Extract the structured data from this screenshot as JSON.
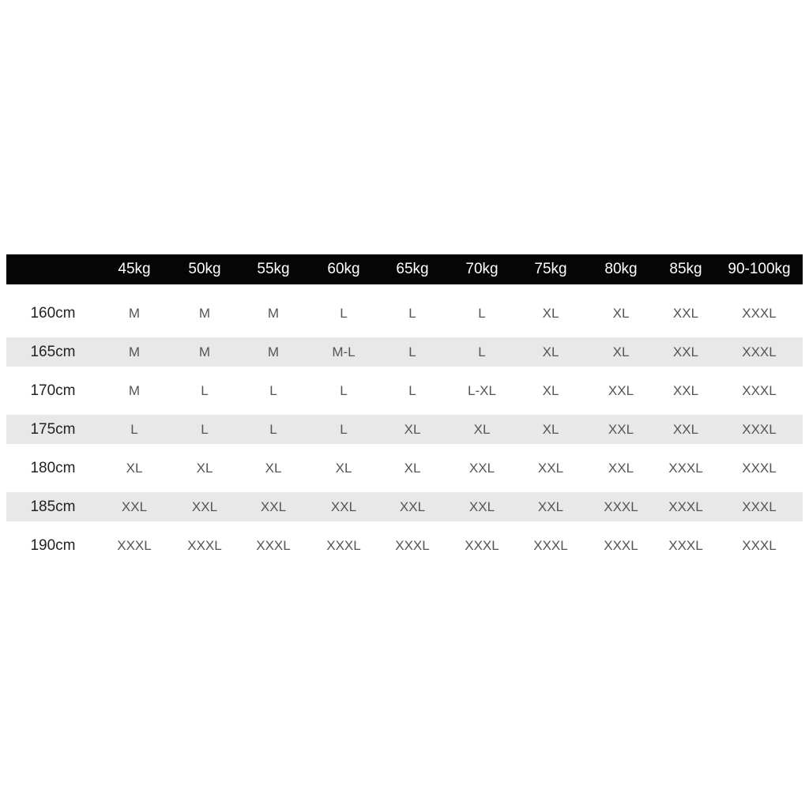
{
  "table": {
    "columns": [
      "45kg",
      "50kg",
      "55kg",
      "60kg",
      "65kg",
      "70kg",
      "75kg",
      "80kg",
      "85kg",
      "90-100kg"
    ],
    "rows": [
      {
        "label": "160cm",
        "cells": [
          "M",
          "M",
          "M",
          "L",
          "L",
          "L",
          "XL",
          "XL",
          "XXL",
          "XXXL"
        ]
      },
      {
        "label": "165cm",
        "cells": [
          "M",
          "M",
          "M",
          "M-L",
          "L",
          "L",
          "XL",
          "XL",
          "XXL",
          "XXXL"
        ]
      },
      {
        "label": "170cm",
        "cells": [
          "M",
          "L",
          "L",
          "L",
          "L",
          "L-XL",
          "XL",
          "XXL",
          "XXL",
          "XXXL"
        ]
      },
      {
        "label": "175cm",
        "cells": [
          "L",
          "L",
          "L",
          "L",
          "XL",
          "XL",
          "XL",
          "XXL",
          "XXL",
          "XXXL"
        ]
      },
      {
        "label": "180cm",
        "cells": [
          "XL",
          "XL",
          "XL",
          "XL",
          "XL",
          "XXL",
          "XXL",
          "XXL",
          "XXXL",
          "XXXL"
        ]
      },
      {
        "label": "185cm",
        "cells": [
          "XXL",
          "XXL",
          "XXL",
          "XXL",
          "XXL",
          "XXL",
          "XXL",
          "XXXL",
          "XXXL",
          "XXXL"
        ]
      },
      {
        "label": "190cm",
        "cells": [
          "XXXL",
          "XXXL",
          "XXXL",
          "XXXL",
          "XXXL",
          "XXXL",
          "XXXL",
          "XXXL",
          "XXXL",
          "XXXL"
        ]
      }
    ]
  }
}
